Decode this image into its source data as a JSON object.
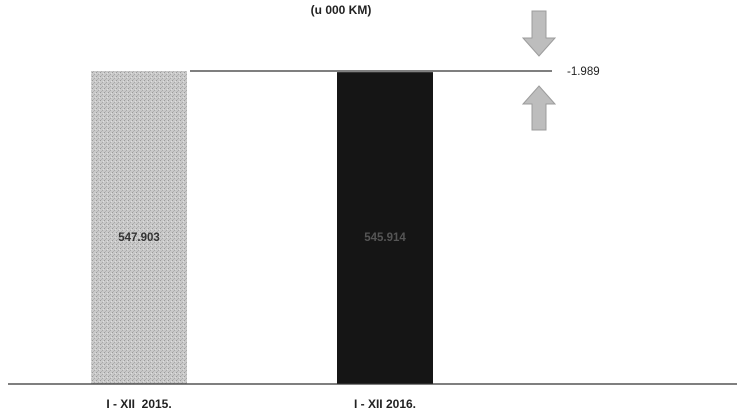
{
  "chart_data": {
    "type": "bar",
    "title": "(u 000 KM)",
    "categories": [
      "I - XII  2015.",
      "I - XII 2016."
    ],
    "values": [
      547903,
      545914
    ],
    "data_labels": [
      "547.903",
      "545.914"
    ],
    "ylim": [
      0,
      547903
    ],
    "difference": {
      "value": -1989,
      "label": "-1.989"
    },
    "grid": false,
    "legend": "none",
    "colors": {
      "bar_2015": "#c7c7c7",
      "bar_2016": "#151515",
      "arrow": "#bdbdbd",
      "axis": "#333333"
    }
  }
}
